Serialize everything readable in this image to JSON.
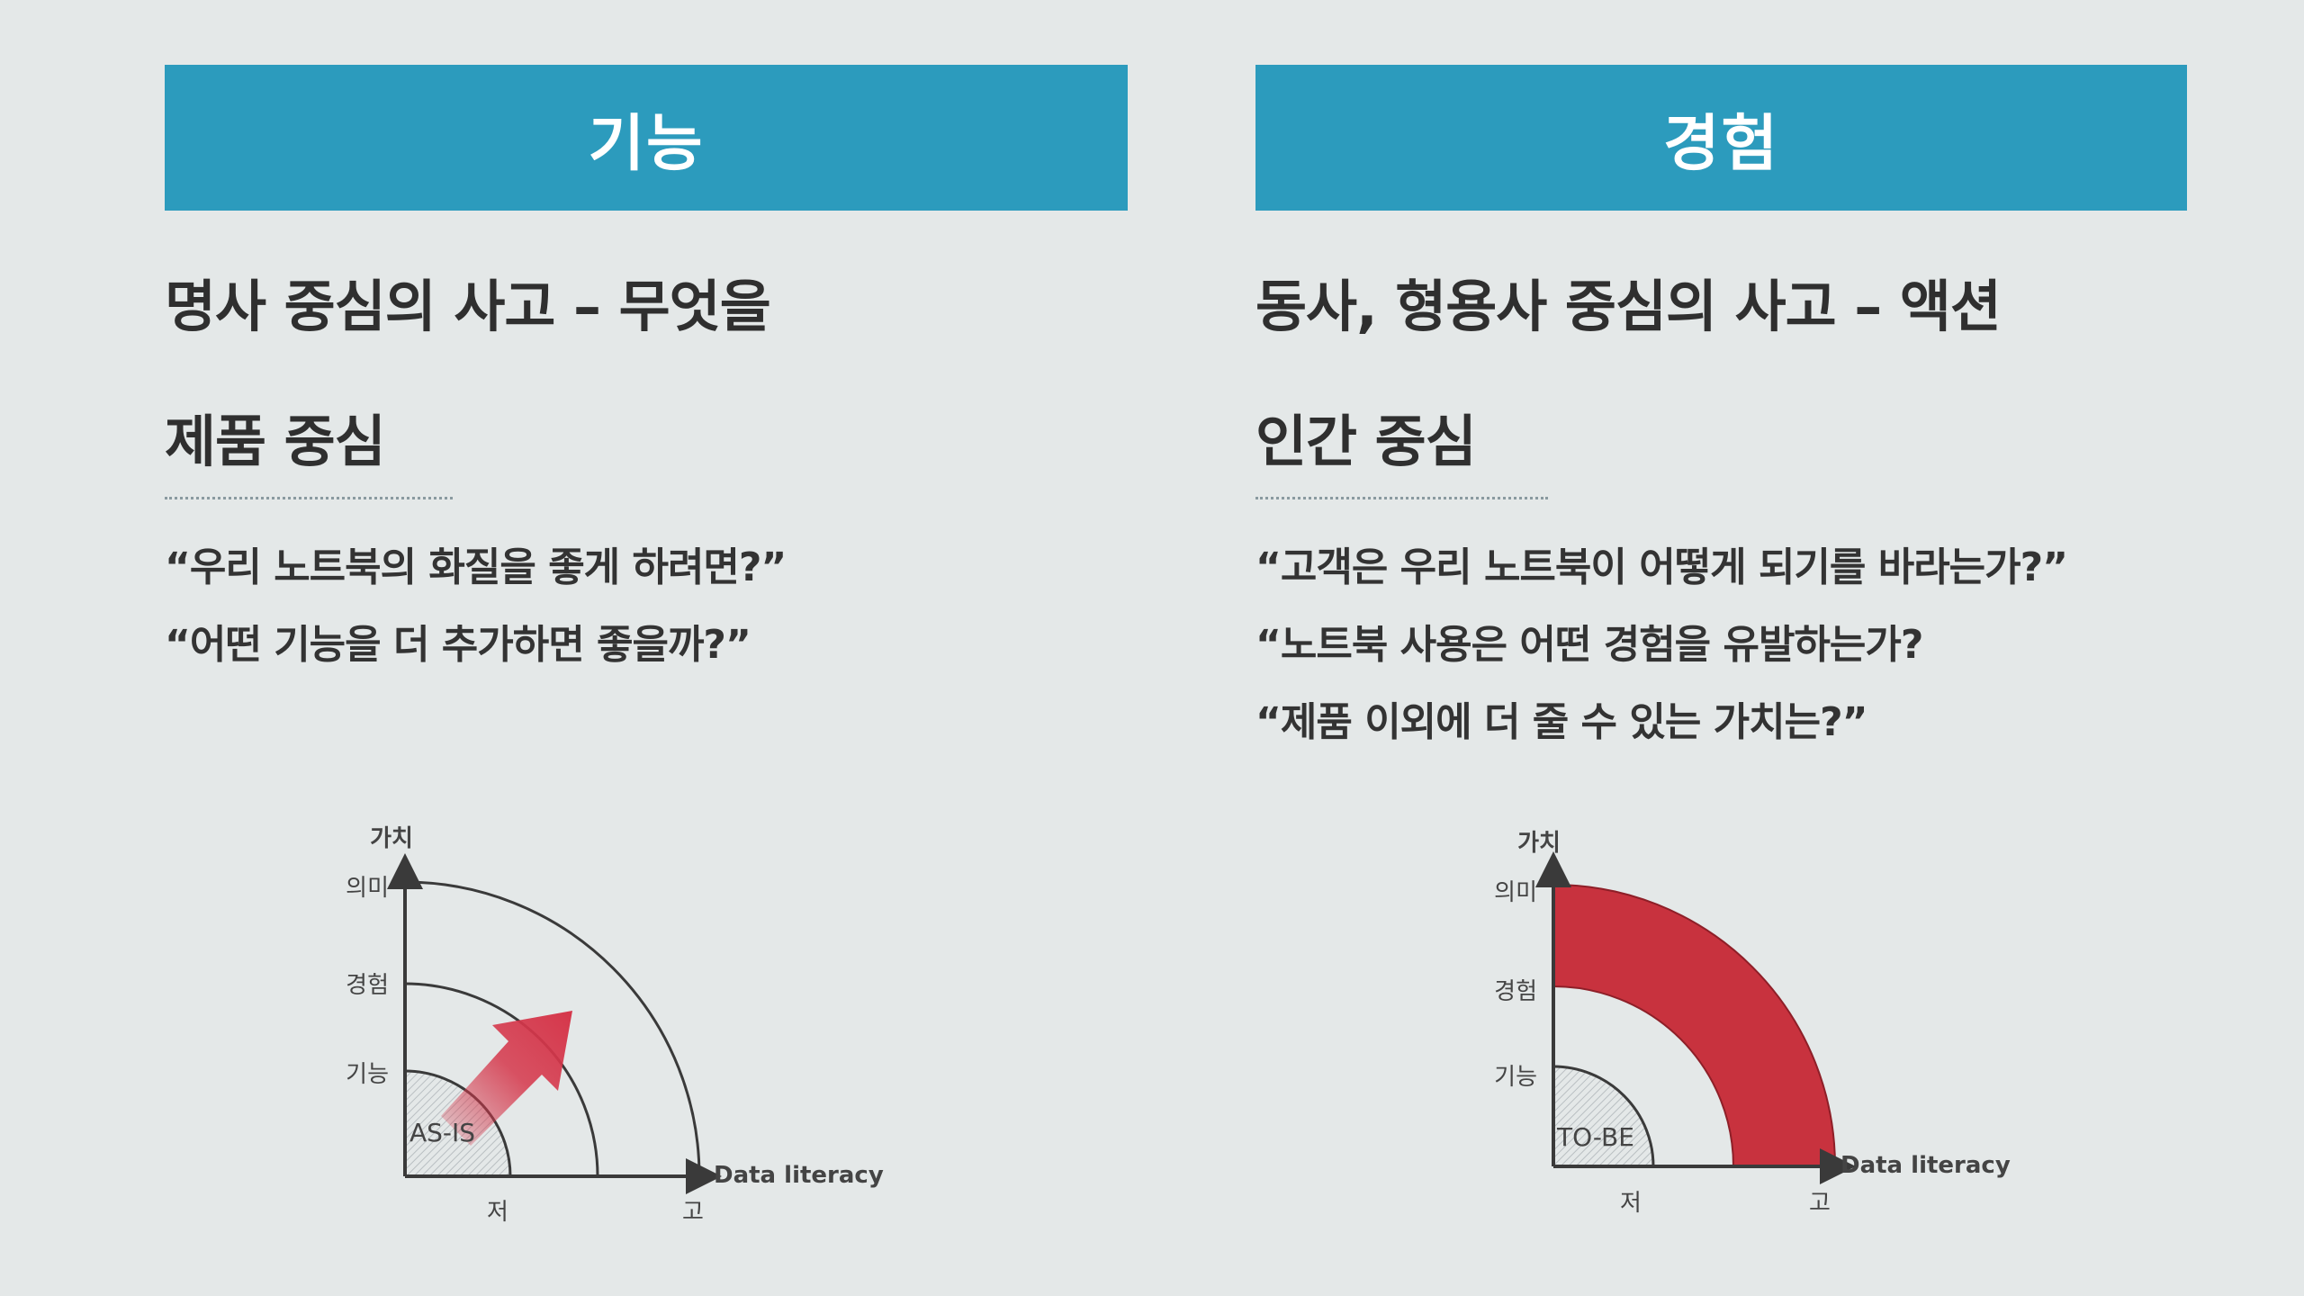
{
  "colors": {
    "banner": "#2c9bbd",
    "arrow": "#d5364a",
    "band": "#c8323e",
    "axis": "#3a3a3a"
  },
  "left": {
    "banner_title": "기능",
    "heading_line1": "명사 중심의 사고  –  무엇을",
    "heading_line2": "제품 중심",
    "quotes": [
      "“우리 노트북의 화질을 좋게 하려면?”",
      "“어떤 기능을 더 추가하면 좋을까?”"
    ],
    "chart": {
      "y_axis_label": "가치",
      "y_levels": [
        "의미",
        "경험",
        "기능"
      ],
      "x_axis_label": "Data literacy",
      "x_ticks": [
        "저",
        "고"
      ],
      "region_label": "AS-IS"
    }
  },
  "right": {
    "banner_title": "경험",
    "heading_line1": "동사, 형용사 중심의 사고 – 액션",
    "heading_line2": "인간 중심",
    "quotes": [
      "“고객은 우리 노트북이 어떻게 되기를 바라는가?”",
      "“노트북 사용은 어떤 경험을 유발하는가?",
      "“제품 이외에 더 줄 수 있는 가치는?”"
    ],
    "chart": {
      "y_axis_label": "가치",
      "y_levels": [
        "의미",
        "경험",
        "기능"
      ],
      "x_axis_label": "Data literacy",
      "x_ticks": [
        "저",
        "고"
      ],
      "region_label": "TO-BE"
    }
  }
}
